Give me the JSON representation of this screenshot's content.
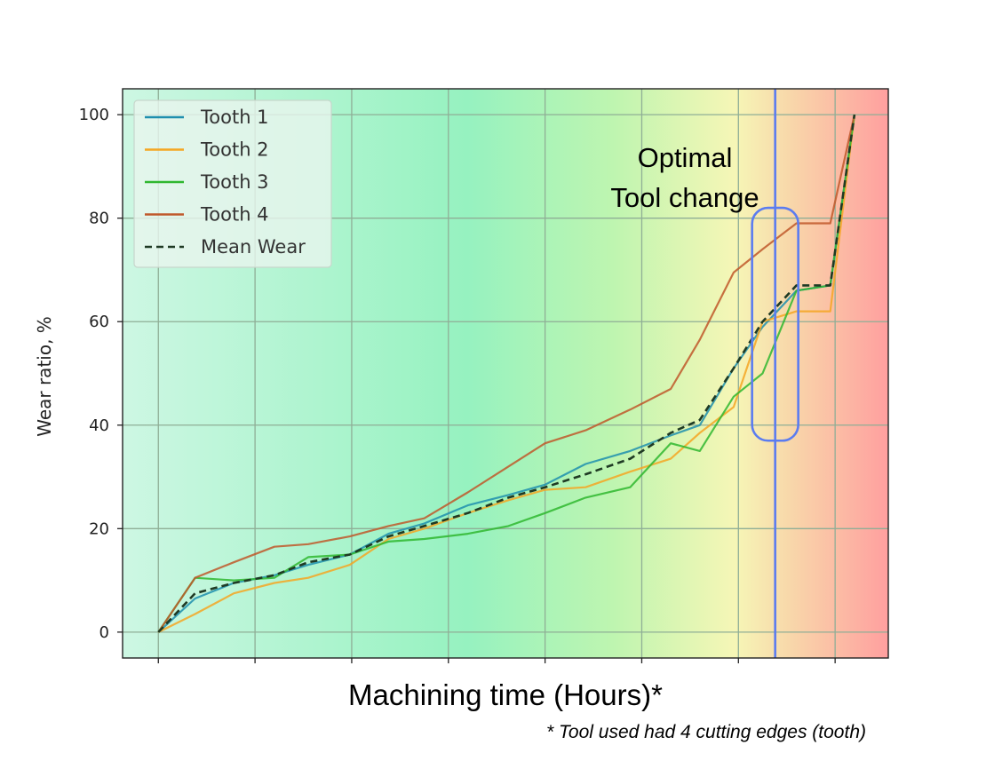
{
  "chart_data": {
    "type": "line",
    "title": "",
    "xlabel": "Machining time (Hours)*",
    "ylabel": "Wear ratio, %",
    "ylim": [
      -5,
      105
    ],
    "xlim": [
      -0.37,
      7.55
    ],
    "yticks": [
      0,
      20,
      40,
      60,
      80,
      100
    ],
    "ytick_labels": [
      "0",
      "20",
      "40",
      "60",
      "80",
      "100"
    ],
    "xticks": [
      0,
      1,
      2,
      3,
      4,
      5,
      6,
      7
    ],
    "grid": true,
    "legend_position": "upper-left",
    "background": "horizontal gradient: mint green to green to yellow to red (increasing wear)",
    "footnote": "* Tool used had 4 cutting edges (tooth)",
    "annotation": {
      "text_line1": "Optimal",
      "text_line2": "Tool change",
      "vline_x": 6.38,
      "highlight_y_range": [
        37,
        82
      ]
    },
    "x": [
      0,
      0.38,
      0.78,
      1.2,
      1.55,
      1.98,
      2.38,
      2.75,
      3.2,
      3.62,
      4.0,
      4.42,
      4.88,
      5.3,
      5.6,
      5.95,
      6.25,
      6.6,
      6.95,
      7.2
    ],
    "series": [
      {
        "name": "Tooth 1",
        "color": "#1f8fae",
        "values": [
          0,
          6.5,
          9.5,
          11,
          13,
          15,
          19,
          21,
          24.5,
          26.5,
          28.5,
          32.5,
          35,
          38,
          40,
          51,
          59,
          66,
          67,
          100
        ]
      },
      {
        "name": "Tooth 2",
        "color": "#f5a623",
        "values": [
          0,
          3.5,
          7.5,
          9.5,
          10.5,
          13,
          18,
          20,
          23,
          25.5,
          27.5,
          28,
          31,
          33.5,
          38.5,
          43.5,
          60,
          62,
          62,
          100
        ]
      },
      {
        "name": "Tooth 3",
        "color": "#2fb72f",
        "values": [
          0,
          10.5,
          10,
          10.5,
          14.5,
          15,
          17.5,
          18,
          19,
          20.5,
          23,
          26,
          28,
          36.5,
          35,
          45.5,
          50,
          66,
          67,
          100
        ]
      },
      {
        "name": "Tooth 4",
        "color": "#c0582a",
        "values": [
          0,
          10.5,
          13.5,
          16.5,
          17,
          18.5,
          20.5,
          22,
          27,
          32,
          36.5,
          39,
          43,
          47,
          56.5,
          69.5,
          74,
          79,
          79,
          100
        ]
      },
      {
        "name": "Mean Wear",
        "color": "#1f3a24",
        "dashed": true,
        "values": [
          0,
          7.5,
          9.5,
          11,
          13.5,
          15,
          18.5,
          20.5,
          23,
          26,
          28,
          30.5,
          33.5,
          38.5,
          41,
          51,
          60,
          67,
          67,
          100
        ]
      }
    ]
  }
}
